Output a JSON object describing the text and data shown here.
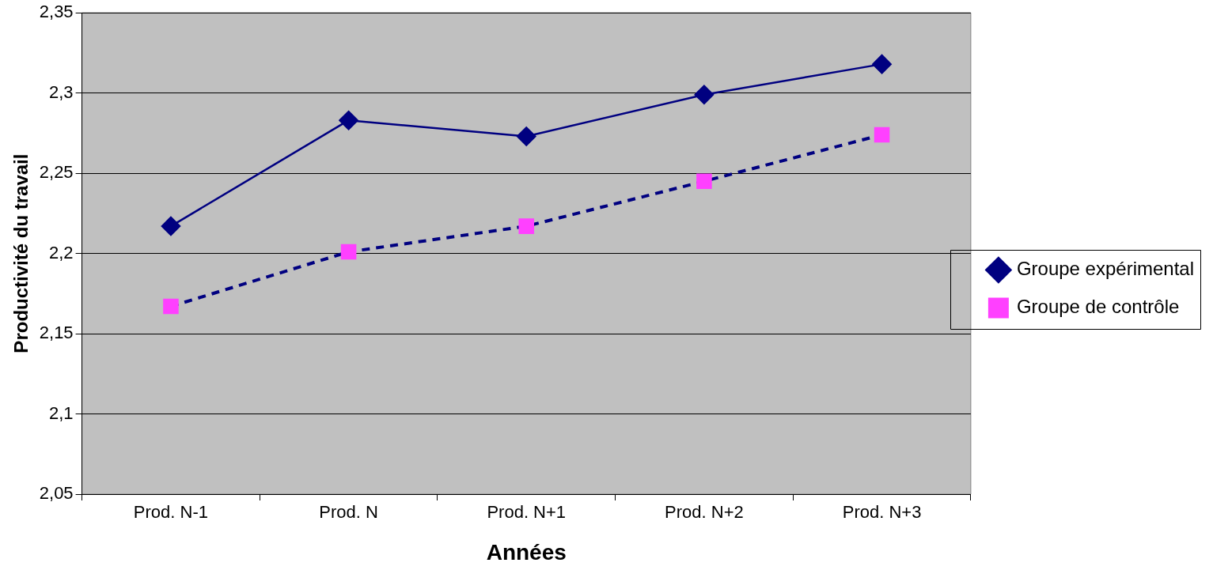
{
  "chart_data": {
    "type": "line",
    "xlabel": "Années",
    "ylabel": "Productivité du travail",
    "categories": [
      "Prod. N-1",
      "Prod. N",
      "Prod. N+1",
      "Prod. N+2",
      "Prod. N+3"
    ],
    "series": [
      {
        "name": "Groupe expérimental",
        "color": "#000080",
        "marker": "diamond",
        "line_style": "solid",
        "values": [
          2.217,
          2.283,
          2.273,
          2.299,
          2.318
        ]
      },
      {
        "name": "Groupe de contrôle",
        "color": "#000080",
        "colors": [
          "#ff40ff",
          "#ff40ff",
          "#ff40ff",
          "#ff40ff",
          "#ff40ff"
        ],
        "marker": "square",
        "line_style": "dashed",
        "values": [
          2.167,
          2.201,
          2.217,
          2.245,
          2.274
        ]
      }
    ],
    "ylim": [
      2.05,
      2.35
    ],
    "yticks": [
      {
        "value": 2.05,
        "label": "2,05"
      },
      {
        "value": 2.1,
        "label": "2,1"
      },
      {
        "value": 2.15,
        "label": "2,15"
      },
      {
        "value": 2.2,
        "label": "2,2"
      },
      {
        "value": 2.25,
        "label": "2,25"
      },
      {
        "value": 2.3,
        "label": "2,3"
      },
      {
        "value": 2.35,
        "label": "2,35"
      }
    ],
    "grid": "y",
    "legend": "right"
  }
}
